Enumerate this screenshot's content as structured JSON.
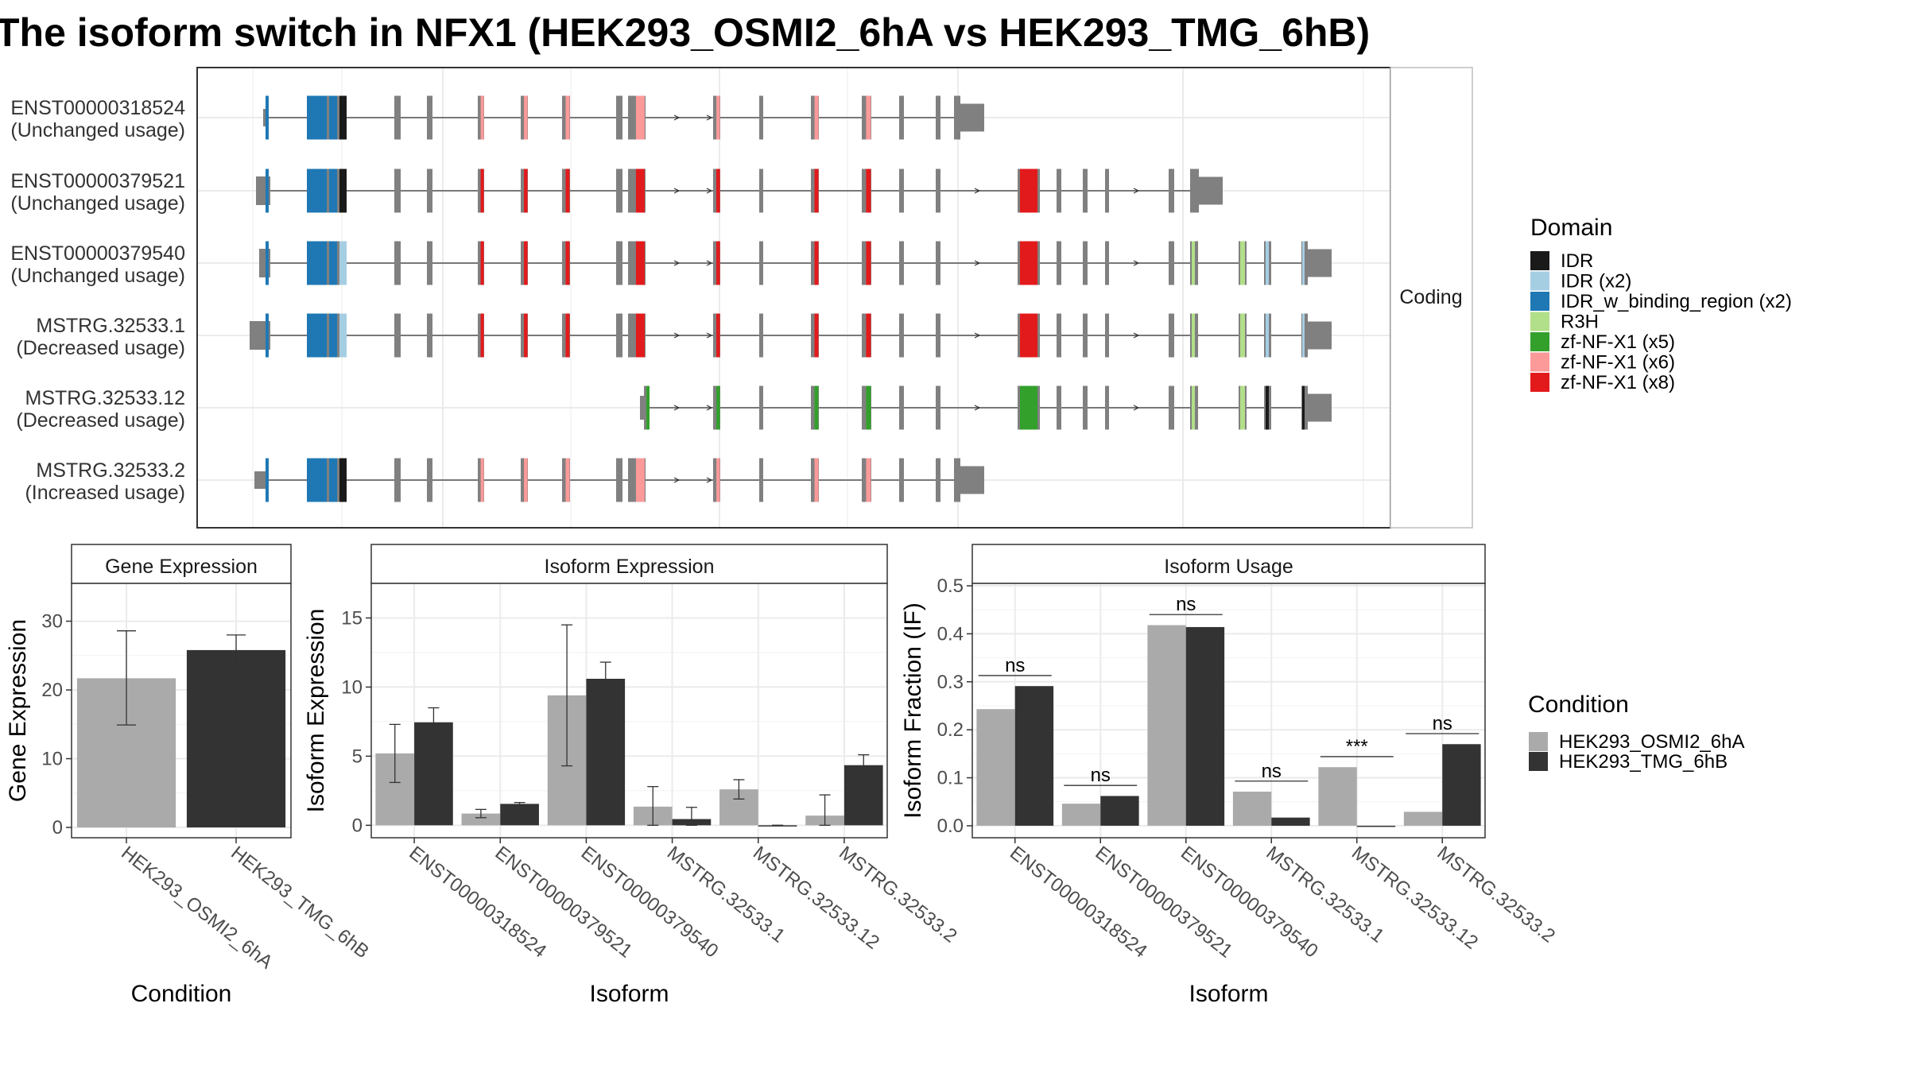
{
  "title": "The isoform switch in NFX1 (HEK293_OSMI2_6hA vs HEK293_TMG_6hB)",
  "colors": {
    "IDR": "#1a1a1a",
    "IDR (x2)": "#a6cee3",
    "IDR_w_binding_region (x2)": "#1f78b4",
    "R3H": "#b2df8a",
    "zf-NF-X1 (x5)": "#33a02c",
    "zf-NF-X1 (x6)": "#fb9a99",
    "zf-NF-X1 (x8)": "#e31a1c",
    "exon": "#808080",
    "condA": "#aaaaaa",
    "condB": "#333333"
  },
  "structure": {
    "strip_label": "Coding",
    "isoforms": [
      {
        "id": "ENST00000318524",
        "usage": "(Unchanged usage)"
      },
      {
        "id": "ENST00000379521",
        "usage": "(Unchanged usage)"
      },
      {
        "id": "ENST00000379540",
        "usage": "(Unchanged usage)"
      },
      {
        "id": "MSTRG.32533.1",
        "usage": "(Decreased usage)"
      },
      {
        "id": "MSTRG.32533.12",
        "usage": "(Decreased usage)"
      },
      {
        "id": "MSTRG.32533.2",
        "usage": "(Increased usage)"
      }
    ]
  },
  "legend_domain": {
    "title": "Domain",
    "items": [
      "IDR",
      "IDR (x2)",
      "IDR_w_binding_region (x2)",
      "R3H",
      "zf-NF-X1 (x5)",
      "zf-NF-X1 (x6)",
      "zf-NF-X1 (x8)"
    ]
  },
  "legend_condition": {
    "title": "Condition",
    "items": [
      "HEK293_OSMI2_6hA",
      "HEK293_TMG_6hB"
    ]
  },
  "chart_data": [
    {
      "type": "bar",
      "title": "Gene Expression",
      "xlabel": "Condition",
      "ylabel": "Gene Expression",
      "categories": [
        "HEK293_OSMI2_6hA",
        "HEK293_TMG_6hB"
      ],
      "values": [
        21.7,
        25.8
      ],
      "error_low": [
        14.9,
        23.6
      ],
      "error_high": [
        28.6,
        28.0
      ],
      "ylim": [
        -1.5,
        35.5
      ],
      "yticks": [
        0,
        10,
        20,
        30
      ]
    },
    {
      "type": "bar",
      "title": "Isoform Expression",
      "xlabel": "Isoform",
      "ylabel": "Isoform Expression",
      "categories": [
        "ENST00000318524",
        "ENST00000379521",
        "ENST00000379540",
        "MSTRG.32533.1",
        "MSTRG.32533.12",
        "MSTRG.32533.2"
      ],
      "series": [
        {
          "name": "HEK293_OSMI2_6hA",
          "values": [
            5.2,
            0.85,
            9.4,
            1.35,
            2.6,
            0.7
          ],
          "error_low": [
            3.1,
            0.55,
            4.3,
            0.0,
            1.9,
            0.0
          ],
          "error_high": [
            7.3,
            1.15,
            14.5,
            2.8,
            3.3,
            2.2
          ]
        },
        {
          "name": "HEK293_TMG_6hB",
          "values": [
            7.45,
            1.55,
            10.6,
            0.45,
            0.0,
            4.35
          ],
          "error_low": [
            6.4,
            1.45,
            9.4,
            0.0,
            0.0,
            3.6
          ],
          "error_high": [
            8.5,
            1.65,
            11.8,
            1.3,
            0.0,
            5.1
          ]
        }
      ],
      "ylim": [
        -0.9,
        17.5
      ],
      "yticks": [
        0,
        5,
        10,
        15
      ]
    },
    {
      "type": "bar",
      "title": "Isoform Usage",
      "xlabel": "Isoform",
      "ylabel": "Isoform Fraction (IF)",
      "categories": [
        "ENST00000318524",
        "ENST00000379521",
        "ENST00000379540",
        "MSTRG.32533.1",
        "MSTRG.32533.12",
        "MSTRG.32533.2"
      ],
      "series": [
        {
          "name": "HEK293_OSMI2_6hA",
          "values": [
            0.243,
            0.046,
            0.418,
            0.071,
            0.122,
            0.029
          ]
        },
        {
          "name": "HEK293_TMG_6hB",
          "values": [
            0.291,
            0.062,
            0.414,
            0.017,
            0.0,
            0.17
          ]
        }
      ],
      "annotations": [
        "ns",
        "ns",
        "ns",
        "ns",
        "***",
        "ns"
      ],
      "ylim": [
        -0.025,
        0.505
      ],
      "yticks": [
        0.0,
        0.1,
        0.2,
        0.3,
        0.4,
        0.5
      ]
    }
  ]
}
